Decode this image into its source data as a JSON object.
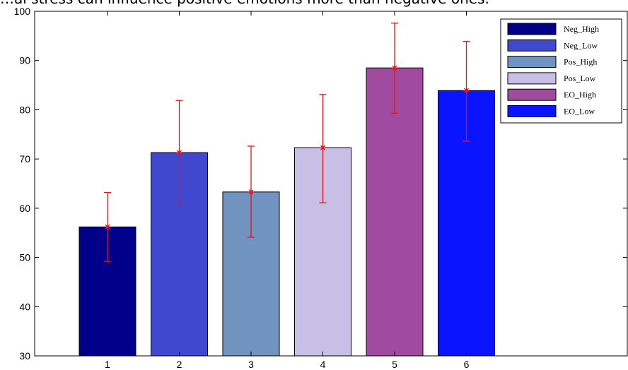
{
  "title": "…al stress can influence positive emotions more than negative ones.",
  "chart_data": {
    "type": "bar",
    "title": "…al stress can influence positive emotions more than negative ones.",
    "xlabel": "",
    "ylabel": "",
    "categories": [
      "1",
      "2",
      "3",
      "4",
      "5",
      "6"
    ],
    "values": [
      56.2,
      71.3,
      63.3,
      72.3,
      88.5,
      83.9
    ],
    "error_upper": [
      63.2,
      81.9,
      72.6,
      83.1,
      97.6,
      93.9
    ],
    "error_lower": [
      49.2,
      60.8,
      54.1,
      61.1,
      79.3,
      73.6
    ],
    "bar_colors": [
      "#00008b",
      "#4048d0",
      "#7093bf",
      "#c8bfe6",
      "#a04aa0",
      "#0a14ff"
    ],
    "error_color": "#ee1111",
    "ylim": [
      30,
      100
    ],
    "yticks": [
      30,
      40,
      50,
      60,
      70,
      80,
      90,
      100
    ],
    "grid": false,
    "legend": {
      "placement": "top-right",
      "entries": [
        {
          "label": "Neg_High",
          "color": "#00008b"
        },
        {
          "label": "Neg_Low",
          "color": "#4048d0"
        },
        {
          "label": "Pos_High",
          "color": "#7093bf"
        },
        {
          "label": "Pos_Low",
          "color": "#c8bfe6"
        },
        {
          "label": "EO_High",
          "color": "#a04aa0"
        },
        {
          "label": "EO_Low",
          "color": "#0a14ff"
        }
      ]
    }
  }
}
